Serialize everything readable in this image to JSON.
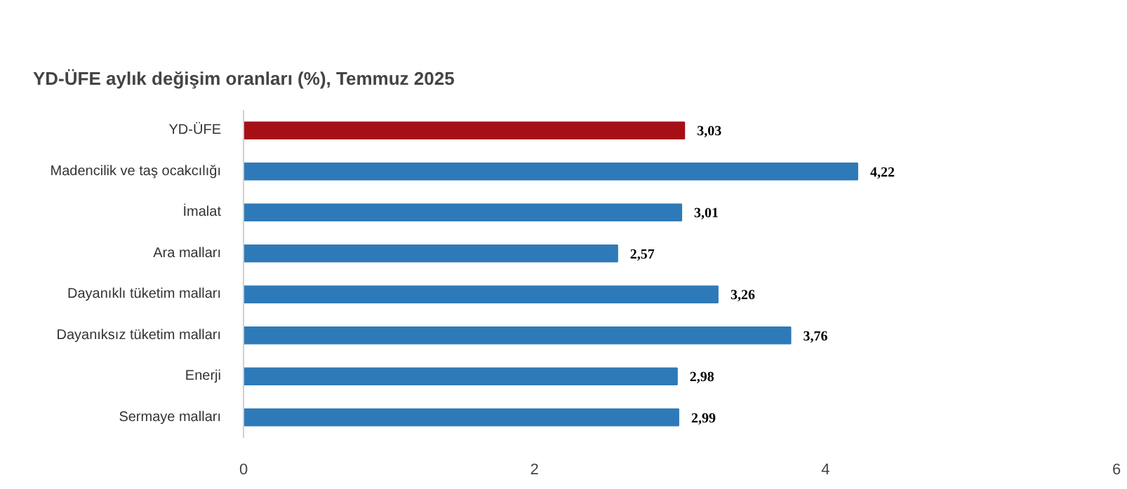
{
  "chart_data": {
    "type": "bar",
    "orientation": "horizontal",
    "title": "YD-ÜFE aylık değişim oranları (%), Temmuz 2025",
    "categories": [
      "YD-ÜFE",
      "Madencilik ve taş ocakcılığı",
      "İmalat",
      "Ara malları",
      "Dayanıklı tüketim malları",
      "Dayanıksız tüketim malları",
      "Enerji",
      "Sermaye malları"
    ],
    "values": [
      3.03,
      4.22,
      3.01,
      2.57,
      3.26,
      3.76,
      2.98,
      2.99
    ],
    "value_labels": [
      "3,03",
      "4,22",
      "3,01",
      "2,57",
      "3,26",
      "3,76",
      "2,98",
      "2,99"
    ],
    "colors": [
      "#a50f15",
      "#2e7ab8",
      "#2e7ab8",
      "#2e7ab8",
      "#2e7ab8",
      "#2e7ab8",
      "#2e7ab8",
      "#2e7ab8"
    ],
    "xlim": [
      0,
      6
    ],
    "xticks": [
      0,
      2,
      4,
      6
    ]
  }
}
